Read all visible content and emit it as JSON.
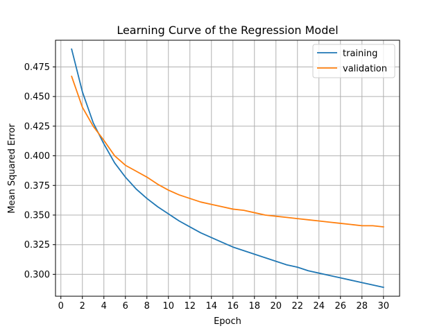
{
  "chart_data": {
    "type": "line",
    "title": "Learning Curve of the Regression Model",
    "xlabel": "Epoch",
    "ylabel": "Mean Squared Error",
    "xlim": [
      -0.5,
      31.5
    ],
    "ylim": [
      0.2815,
      0.4975
    ],
    "xticks": [
      0,
      2,
      4,
      6,
      8,
      10,
      12,
      14,
      16,
      18,
      20,
      22,
      24,
      26,
      28,
      30
    ],
    "yticks": [
      0.3,
      0.325,
      0.35,
      0.375,
      0.4,
      0.425,
      0.45,
      0.475
    ],
    "grid": true,
    "legend_position": "top-right",
    "x": [
      1,
      2,
      3,
      4,
      5,
      6,
      7,
      8,
      9,
      10,
      11,
      12,
      13,
      14,
      15,
      16,
      17,
      18,
      19,
      20,
      21,
      22,
      23,
      24,
      25,
      26,
      27,
      28,
      29,
      30
    ],
    "series": [
      {
        "name": "training",
        "color": "#1f77b4",
        "values": [
          0.49,
          0.454,
          0.428,
          0.41,
          0.394,
          0.382,
          0.372,
          0.364,
          0.357,
          0.351,
          0.345,
          0.34,
          0.335,
          0.331,
          0.327,
          0.323,
          0.32,
          0.317,
          0.314,
          0.311,
          0.308,
          0.306,
          0.303,
          0.301,
          0.299,
          0.297,
          0.295,
          0.293,
          0.291,
          0.289
        ]
      },
      {
        "name": "validation",
        "color": "#ff7f0e",
        "values": [
          0.467,
          0.441,
          0.425,
          0.413,
          0.4,
          0.392,
          0.387,
          0.382,
          0.376,
          0.371,
          0.367,
          0.364,
          0.361,
          0.359,
          0.357,
          0.355,
          0.354,
          0.352,
          0.35,
          0.349,
          0.348,
          0.347,
          0.346,
          0.345,
          0.344,
          0.343,
          0.342,
          0.341,
          0.341,
          0.34
        ]
      }
    ]
  }
}
